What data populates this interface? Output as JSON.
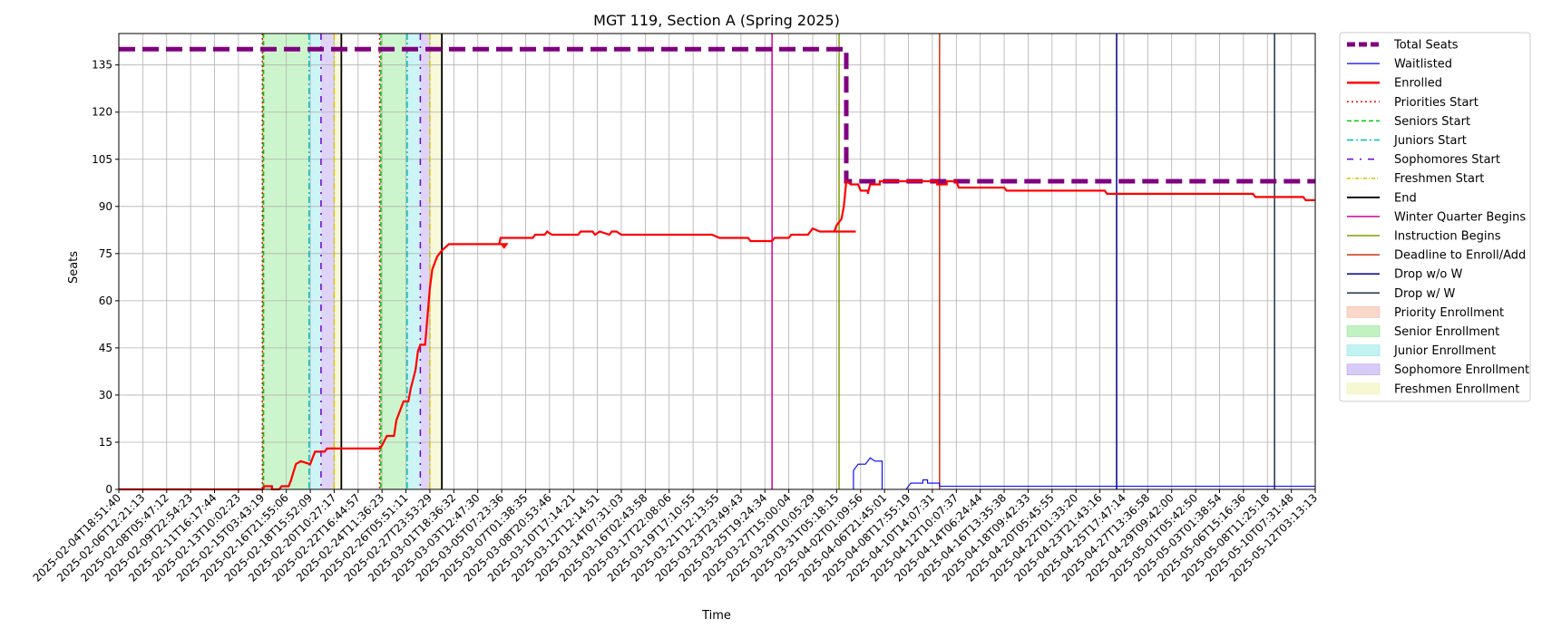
{
  "chart_data": {
    "type": "line",
    "title": "MGT 119, Section A (Spring 2025)",
    "xlabel": "Time",
    "ylabel": "Seats",
    "ylim": [
      0,
      145
    ],
    "yticks": [
      0,
      15,
      30,
      45,
      60,
      75,
      90,
      105,
      120,
      135
    ],
    "grid": true,
    "legend_position": "outside-right",
    "xtick_labels": [
      "2025-02-04T18:51:40",
      "2025-02-06T12:21:13",
      "2025-02-08T05:47:12",
      "2025-02-09T22:54:23",
      "2025-02-11T16:17:44",
      "2025-02-13T10:02:23",
      "2025-02-15T03:43:19",
      "2025-02-16T21:55:06",
      "2025-02-18T15:52:09",
      "2025-02-20T10:27:17",
      "2025-02-22T16:44:57",
      "2025-02-24T11:36:23",
      "2025-02-26T05:51:11",
      "2025-02-27T23:53:29",
      "2025-03-01T18:36:32",
      "2025-03-03T12:47:30",
      "2025-03-05T07:23:36",
      "2025-03-07T01:38:35",
      "2025-03-08T20:53:46",
      "2025-03-10T17:14:21",
      "2025-03-12T12:14:51",
      "2025-03-14T07:31:03",
      "2025-03-16T02:43:58",
      "2025-03-17T22:08:06",
      "2025-03-19T17:10:55",
      "2025-03-21T12:13:55",
      "2025-03-23T23:49:43",
      "2025-03-25T19:24:34",
      "2025-03-27T15:00:04",
      "2025-03-29T10:05:29",
      "2025-03-31T05:18:15",
      "2025-04-02T01:09:56",
      "2025-04-06T21:45:01",
      "2025-04-08T17:55:19",
      "2025-04-10T14:07:31",
      "2025-04-12T10:07:37",
      "2025-04-14T06:24:44",
      "2025-04-16T13:35:38",
      "2025-04-18T09:42:33",
      "2025-04-20T05:45:55",
      "2025-04-22T01:33:20",
      "2025-04-23T21:43:16",
      "2025-04-25T17:47:14",
      "2025-04-27T13:36:58",
      "2025-04-29T09:42:00",
      "2025-05-01T05:42:50",
      "2025-05-03T01:38:54",
      "2025-05-06T15:16:36",
      "2025-05-08T11:25:18",
      "2025-05-10T07:31:48",
      "2025-05-12T03:13:13"
    ],
    "series": [
      {
        "name": "Total Seats",
        "color": "#800080",
        "style": "dashed-thick",
        "points": [
          [
            0,
            140
          ],
          [
            30.4,
            140
          ],
          [
            30.4,
            98
          ],
          [
            50,
            98
          ]
        ]
      },
      {
        "name": "Waitlisted",
        "color": "#0000ff",
        "style": "solid-thin",
        "points": [
          [
            0,
            0
          ],
          [
            30.7,
            0
          ],
          [
            30.7,
            6
          ],
          [
            30.9,
            8
          ],
          [
            31.2,
            8
          ],
          [
            31.4,
            10
          ],
          [
            31.6,
            9
          ],
          [
            31.9,
            9
          ],
          [
            31.9,
            0
          ],
          [
            32.9,
            0
          ],
          [
            33.1,
            2
          ],
          [
            33.6,
            2
          ],
          [
            33.6,
            3
          ],
          [
            33.8,
            3
          ],
          [
            33.8,
            2
          ],
          [
            34.3,
            2
          ],
          [
            34.3,
            1
          ],
          [
            50,
            1
          ]
        ]
      },
      {
        "name": "Enrolled",
        "color": "#ff0000",
        "style": "solid-thick",
        "points": [
          [
            0,
            0
          ],
          [
            6.0,
            0
          ],
          [
            6.1,
            1
          ],
          [
            6.4,
            1
          ],
          [
            6.4,
            0
          ],
          [
            6.7,
            0
          ],
          [
            6.8,
            1
          ],
          [
            7.1,
            1
          ],
          [
            7.2,
            3
          ],
          [
            7.4,
            8
          ],
          [
            7.6,
            9
          ],
          [
            8.0,
            8
          ],
          [
            8.2,
            12
          ],
          [
            8.6,
            12
          ],
          [
            8.7,
            13
          ],
          [
            10.9,
            13
          ],
          [
            11.0,
            14
          ],
          [
            11.2,
            17
          ],
          [
            11.5,
            17
          ],
          [
            11.6,
            22
          ],
          [
            11.8,
            26
          ],
          [
            11.9,
            28
          ],
          [
            12.1,
            28
          ],
          [
            12.2,
            32
          ],
          [
            12.4,
            38
          ],
          [
            12.5,
            44
          ],
          [
            12.6,
            46
          ],
          [
            12.8,
            46
          ],
          [
            12.9,
            55
          ],
          [
            13.0,
            64
          ],
          [
            13.1,
            70
          ],
          [
            13.3,
            74
          ],
          [
            13.5,
            76
          ],
          [
            13.8,
            78
          ],
          [
            14.2,
            78
          ],
          [
            16.0,
            78
          ],
          [
            16.1,
            77
          ],
          [
            16.2,
            78
          ],
          [
            15.9,
            78
          ],
          [
            15.95,
            80
          ],
          [
            17.3,
            80
          ],
          [
            17.4,
            81
          ],
          [
            17.8,
            81
          ],
          [
            17.9,
            82
          ],
          [
            18.1,
            81
          ],
          [
            19.2,
            81
          ],
          [
            19.3,
            82
          ],
          [
            19.8,
            82
          ],
          [
            19.9,
            81
          ],
          [
            20.1,
            82
          ],
          [
            20.5,
            81
          ],
          [
            20.6,
            82
          ],
          [
            20.8,
            82
          ],
          [
            21.0,
            81
          ],
          [
            22.0,
            81
          ],
          [
            22.5,
            81
          ],
          [
            23.0,
            81
          ],
          [
            24.8,
            81
          ],
          [
            25.1,
            80
          ],
          [
            25.4,
            80
          ],
          [
            25.5,
            80
          ],
          [
            26.3,
            80
          ],
          [
            26.4,
            79
          ],
          [
            27.3,
            79
          ],
          [
            27.4,
            80
          ],
          [
            28.0,
            80
          ],
          [
            28.1,
            81
          ],
          [
            28.8,
            81
          ],
          [
            28.9,
            82
          ],
          [
            29.0,
            83
          ],
          [
            29.3,
            82
          ],
          [
            30.8,
            82
          ],
          [
            29.9,
            82
          ],
          [
            30.0,
            84
          ],
          [
            30.2,
            86
          ],
          [
            30.3,
            90
          ],
          [
            30.4,
            98
          ],
          [
            30.6,
            97
          ],
          [
            30.9,
            97
          ],
          [
            31.0,
            95
          ],
          [
            31.3,
            95
          ],
          [
            31.3,
            94
          ],
          [
            31.4,
            97
          ],
          [
            31.8,
            97
          ],
          [
            31.8,
            98
          ],
          [
            34.2,
            98
          ],
          [
            34.2,
            97
          ],
          [
            34.6,
            97
          ],
          [
            34.6,
            98
          ],
          [
            35.0,
            98
          ],
          [
            35.1,
            96
          ],
          [
            37.0,
            96
          ],
          [
            37.1,
            95
          ],
          [
            38.0,
            95
          ],
          [
            41.2,
            95
          ],
          [
            41.3,
            94
          ],
          [
            42.0,
            94
          ],
          [
            47.4,
            94
          ],
          [
            47.5,
            93
          ],
          [
            49.5,
            93
          ],
          [
            49.6,
            92
          ],
          [
            50,
            92
          ]
        ]
      }
    ],
    "vertical_lines": [
      {
        "name": "Priorities Start",
        "color": "#ff0000",
        "style": "dotted",
        "x": [
          6.0,
          10.9
        ]
      },
      {
        "name": "Seniors Start",
        "color": "#00cc00",
        "style": "dashed",
        "x": [
          6.05,
          10.95
        ]
      },
      {
        "name": "Juniors Start",
        "color": "#00bfbf",
        "style": "dashdot",
        "x": [
          7.95,
          12.05
        ]
      },
      {
        "name": "Sophomores Start",
        "color": "#6a00d5",
        "style": "loosedash",
        "x": [
          8.45,
          12.6
        ]
      },
      {
        "name": "Freshmen Start",
        "color": "#d4c400",
        "style": "dashdot",
        "x": [
          9.0,
          13.0
        ]
      },
      {
        "name": "End",
        "color": "#000000",
        "style": "solid",
        "x": [
          9.3,
          13.5
        ]
      },
      {
        "name": "Winter Quarter Begins",
        "color": "#d000a0",
        "style": "solid",
        "x": [
          27.3
        ]
      },
      {
        "name": "Instruction Begins",
        "color": "#7fa000",
        "style": "solid",
        "x": [
          30.1
        ]
      },
      {
        "name": "Deadline to Enroll/Add",
        "color": "#d03010",
        "style": "solid",
        "x": [
          34.3
        ]
      },
      {
        "name": "Drop w/o W",
        "color": "#00008b",
        "style": "solid",
        "x": [
          41.7
        ]
      },
      {
        "name": "Drop w/ W",
        "color": "#1f2f4f",
        "style": "solid",
        "x": [
          48.3
        ]
      }
    ],
    "bands": [
      {
        "name": "Priority Enrollment",
        "color": "#f4b8a0",
        "ranges": [
          [
            6.0,
            6.05
          ],
          [
            10.9,
            10.95
          ]
        ]
      },
      {
        "name": "Senior Enrollment",
        "color": "#90e890",
        "ranges": [
          [
            6.05,
            7.95
          ],
          [
            10.95,
            12.05
          ]
        ]
      },
      {
        "name": "Junior Enrollment",
        "color": "#90e8e8",
        "ranges": [
          [
            7.95,
            8.45
          ],
          [
            12.05,
            12.6
          ]
        ]
      },
      {
        "name": "Sophomore Enrollment",
        "color": "#b8a0f0",
        "ranges": [
          [
            8.45,
            9.0
          ],
          [
            12.6,
            13.0
          ]
        ]
      },
      {
        "name": "Freshmen Enrollment",
        "color": "#f0f0b0",
        "ranges": [
          [
            9.0,
            9.3
          ],
          [
            13.0,
            13.5
          ]
        ]
      }
    ],
    "legend": [
      {
        "label": "Total Seats",
        "kind": "line",
        "color": "#800080",
        "dash": "9,4",
        "width": 5
      },
      {
        "label": "Waitlisted",
        "kind": "line",
        "color": "#0000ff",
        "dash": "",
        "width": 1.2
      },
      {
        "label": "Enrolled",
        "kind": "line",
        "color": "#ff0000",
        "dash": "",
        "width": 2.5
      },
      {
        "label": "Priorities Start",
        "kind": "line",
        "color": "#ff0000",
        "dash": "2,3",
        "width": 1.5
      },
      {
        "label": "Seniors Start",
        "kind": "line",
        "color": "#00cc00",
        "dash": "5,3",
        "width": 1.5
      },
      {
        "label": "Juniors Start",
        "kind": "line",
        "color": "#00bfbf",
        "dash": "7,3,2,3",
        "width": 1.5
      },
      {
        "label": "Sophomores Start",
        "kind": "line",
        "color": "#6a00d5",
        "dash": "7,7,2,7",
        "width": 1.5
      },
      {
        "label": "Freshmen Start",
        "kind": "line",
        "color": "#d4c400",
        "dash": "4,2,1,2",
        "width": 1.5
      },
      {
        "label": "End",
        "kind": "line",
        "color": "#000000",
        "dash": "",
        "width": 1.8
      },
      {
        "label": "Winter Quarter Begins",
        "kind": "line",
        "color": "#d000a0",
        "dash": "",
        "width": 1.5
      },
      {
        "label": "Instruction Begins",
        "kind": "line",
        "color": "#7fa000",
        "dash": "",
        "width": 1.5
      },
      {
        "label": "Deadline to Enroll/Add",
        "kind": "line",
        "color": "#d03010",
        "dash": "",
        "width": 1.5
      },
      {
        "label": "Drop w/o W",
        "kind": "line",
        "color": "#00008b",
        "dash": "",
        "width": 1.5
      },
      {
        "label": "Drop w/ W",
        "kind": "line",
        "color": "#1f2f4f",
        "dash": "",
        "width": 1.5
      },
      {
        "label": "Priority Enrollment",
        "kind": "patch",
        "color": "#f4b8a0"
      },
      {
        "label": "Senior Enrollment",
        "kind": "patch",
        "color": "#90e890"
      },
      {
        "label": "Junior Enrollment",
        "kind": "patch",
        "color": "#90e8e8"
      },
      {
        "label": "Sophomore Enrollment",
        "kind": "patch",
        "color": "#b8a0f0"
      },
      {
        "label": "Freshmen Enrollment",
        "kind": "patch",
        "color": "#f0f0b0"
      }
    ]
  }
}
